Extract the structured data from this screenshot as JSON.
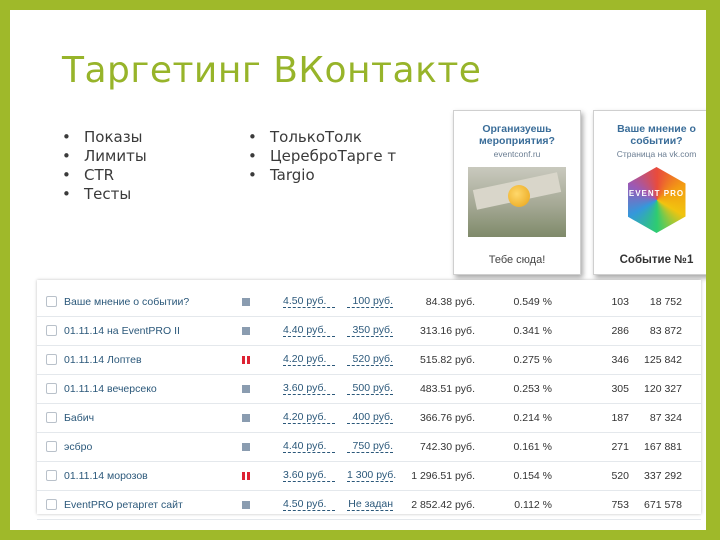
{
  "slide": {
    "title": "Таргетинг ВКонтакте",
    "bullets_left": [
      "Показы",
      "Лимиты",
      "CTR",
      "Тесты"
    ],
    "bullets_right": [
      "ТолькоТолк",
      "ЦереброТарге т",
      "Targio"
    ]
  },
  "ads": [
    {
      "title": "Организуешь мероприятия?",
      "subtitle": "eventconf.ru",
      "cta": "Тебе сюда!"
    },
    {
      "title": "Ваше мнение о событии?",
      "subtitle": "Страница на vk.com",
      "badge": "EVENT PRO",
      "cta": "Событие №1"
    }
  ],
  "campaign_table": {
    "rows": [
      {
        "name": "Ваше мнение о событии?",
        "status": "active",
        "cpc": "4.50 руб.",
        "limit": "100 руб.",
        "spent": "84.38 руб.",
        "ctr": "0.549 %",
        "clicks": "103",
        "views": "18 752"
      },
      {
        "name": "01.11.14 на EventPRO II",
        "status": "active",
        "cpc": "4.40 руб.",
        "limit": "350 руб.",
        "spent": "313.16 руб.",
        "ctr": "0.341 %",
        "clicks": "286",
        "views": "83 872"
      },
      {
        "name": "01.11.14 Лоптев",
        "status": "paused",
        "cpc": "4.20 руб.",
        "limit": "520 руб.",
        "spent": "515.82 руб.",
        "ctr": "0.275 %",
        "clicks": "346",
        "views": "125 842"
      },
      {
        "name": "01.11.14 вечерсеко",
        "status": "active",
        "cpc": "3.60 руб.",
        "limit": "500 руб.",
        "spent": "483.51 руб.",
        "ctr": "0.253 %",
        "clicks": "305",
        "views": "120 327"
      },
      {
        "name": "Бабич",
        "status": "active",
        "cpc": "4.20 руб.",
        "limit": "400 руб.",
        "spent": "366.76 руб.",
        "ctr": "0.214 %",
        "clicks": "187",
        "views": "87 324"
      },
      {
        "name": "эсбро",
        "status": "active",
        "cpc": "4.40 руб.",
        "limit": "750 руб.",
        "spent": "742.30 руб.",
        "ctr": "0.161 %",
        "clicks": "271",
        "views": "167 881"
      },
      {
        "name": "01.11.14 морозов",
        "status": "paused",
        "cpc": "3.60 руб.",
        "limit": "1 300 руб.",
        "spent": "1 296.51 руб.",
        "ctr": "0.154 %",
        "clicks": "520",
        "views": "337 292"
      },
      {
        "name": "EventPRO ретаргет сайт",
        "status": "active",
        "cpc": "4.50 руб.",
        "limit": "Не задан",
        "spent": "2 852.42 руб.",
        "ctr": "0.112 %",
        "clicks": "753",
        "views": "671 578"
      }
    ]
  },
  "colors": {
    "frame": "#9fb92a",
    "title": "#97b42a",
    "link": "#2b587a"
  }
}
